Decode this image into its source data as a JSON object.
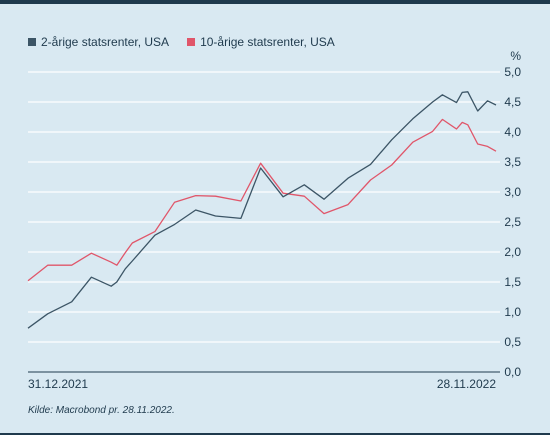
{
  "chart_data": {
    "type": "line",
    "title": "",
    "xlabel": "",
    "ylabel": "%",
    "ylim": [
      0,
      5
    ],
    "yticks": [
      "0,0",
      "0,5",
      "1,0",
      "1,5",
      "2,0",
      "2,5",
      "3,0",
      "3,5",
      "4,0",
      "4,5",
      "5,0"
    ],
    "x_labels": [
      "31.12.2021",
      "28.11.2022"
    ],
    "grid": "horizontal",
    "legend_position": "top-left",
    "series": [
      {
        "name": "2-årige statsrenter, USA",
        "color": "#3c5566",
        "x": [
          "2021-12-31",
          "2022-01-14",
          "2022-01-31",
          "2022-02-14",
          "2022-02-28",
          "2022-03-04",
          "2022-03-10",
          "2022-03-15",
          "2022-03-31",
          "2022-04-14",
          "2022-04-29",
          "2022-05-13",
          "2022-05-31",
          "2022-06-14",
          "2022-06-30",
          "2022-07-15",
          "2022-07-29",
          "2022-08-15",
          "2022-08-31",
          "2022-09-15",
          "2022-09-30",
          "2022-10-14",
          "2022-10-21",
          "2022-10-31",
          "2022-11-04",
          "2022-11-08",
          "2022-11-15",
          "2022-11-22",
          "2022-11-28"
        ],
        "values": [
          0.73,
          0.97,
          1.17,
          1.58,
          1.43,
          1.5,
          1.72,
          1.85,
          2.28,
          2.46,
          2.7,
          2.6,
          2.56,
          3.4,
          2.92,
          3.12,
          2.88,
          3.23,
          3.46,
          3.87,
          4.22,
          4.5,
          4.62,
          4.49,
          4.66,
          4.67,
          4.35,
          4.52,
          4.45
        ]
      },
      {
        "name": "10-årige statsrenter, USA",
        "color": "#e0566a",
        "x": [
          "2021-12-31",
          "2022-01-14",
          "2022-01-31",
          "2022-02-14",
          "2022-02-28",
          "2022-03-04",
          "2022-03-10",
          "2022-03-15",
          "2022-03-31",
          "2022-04-14",
          "2022-04-29",
          "2022-05-13",
          "2022-05-31",
          "2022-06-14",
          "2022-06-30",
          "2022-07-15",
          "2022-07-29",
          "2022-08-15",
          "2022-08-31",
          "2022-09-15",
          "2022-09-30",
          "2022-10-14",
          "2022-10-21",
          "2022-10-31",
          "2022-11-04",
          "2022-11-08",
          "2022-11-15",
          "2022-11-22",
          "2022-11-28"
        ],
        "values": [
          1.52,
          1.78,
          1.78,
          1.98,
          1.83,
          1.78,
          1.99,
          2.15,
          2.34,
          2.83,
          2.94,
          2.93,
          2.85,
          3.48,
          2.98,
          2.93,
          2.64,
          2.79,
          3.2,
          3.45,
          3.83,
          4.01,
          4.21,
          4.05,
          4.16,
          4.12,
          3.8,
          3.76,
          3.68
        ]
      }
    ]
  },
  "source": "Kilde: Macrobond pr. 28.11.2022."
}
